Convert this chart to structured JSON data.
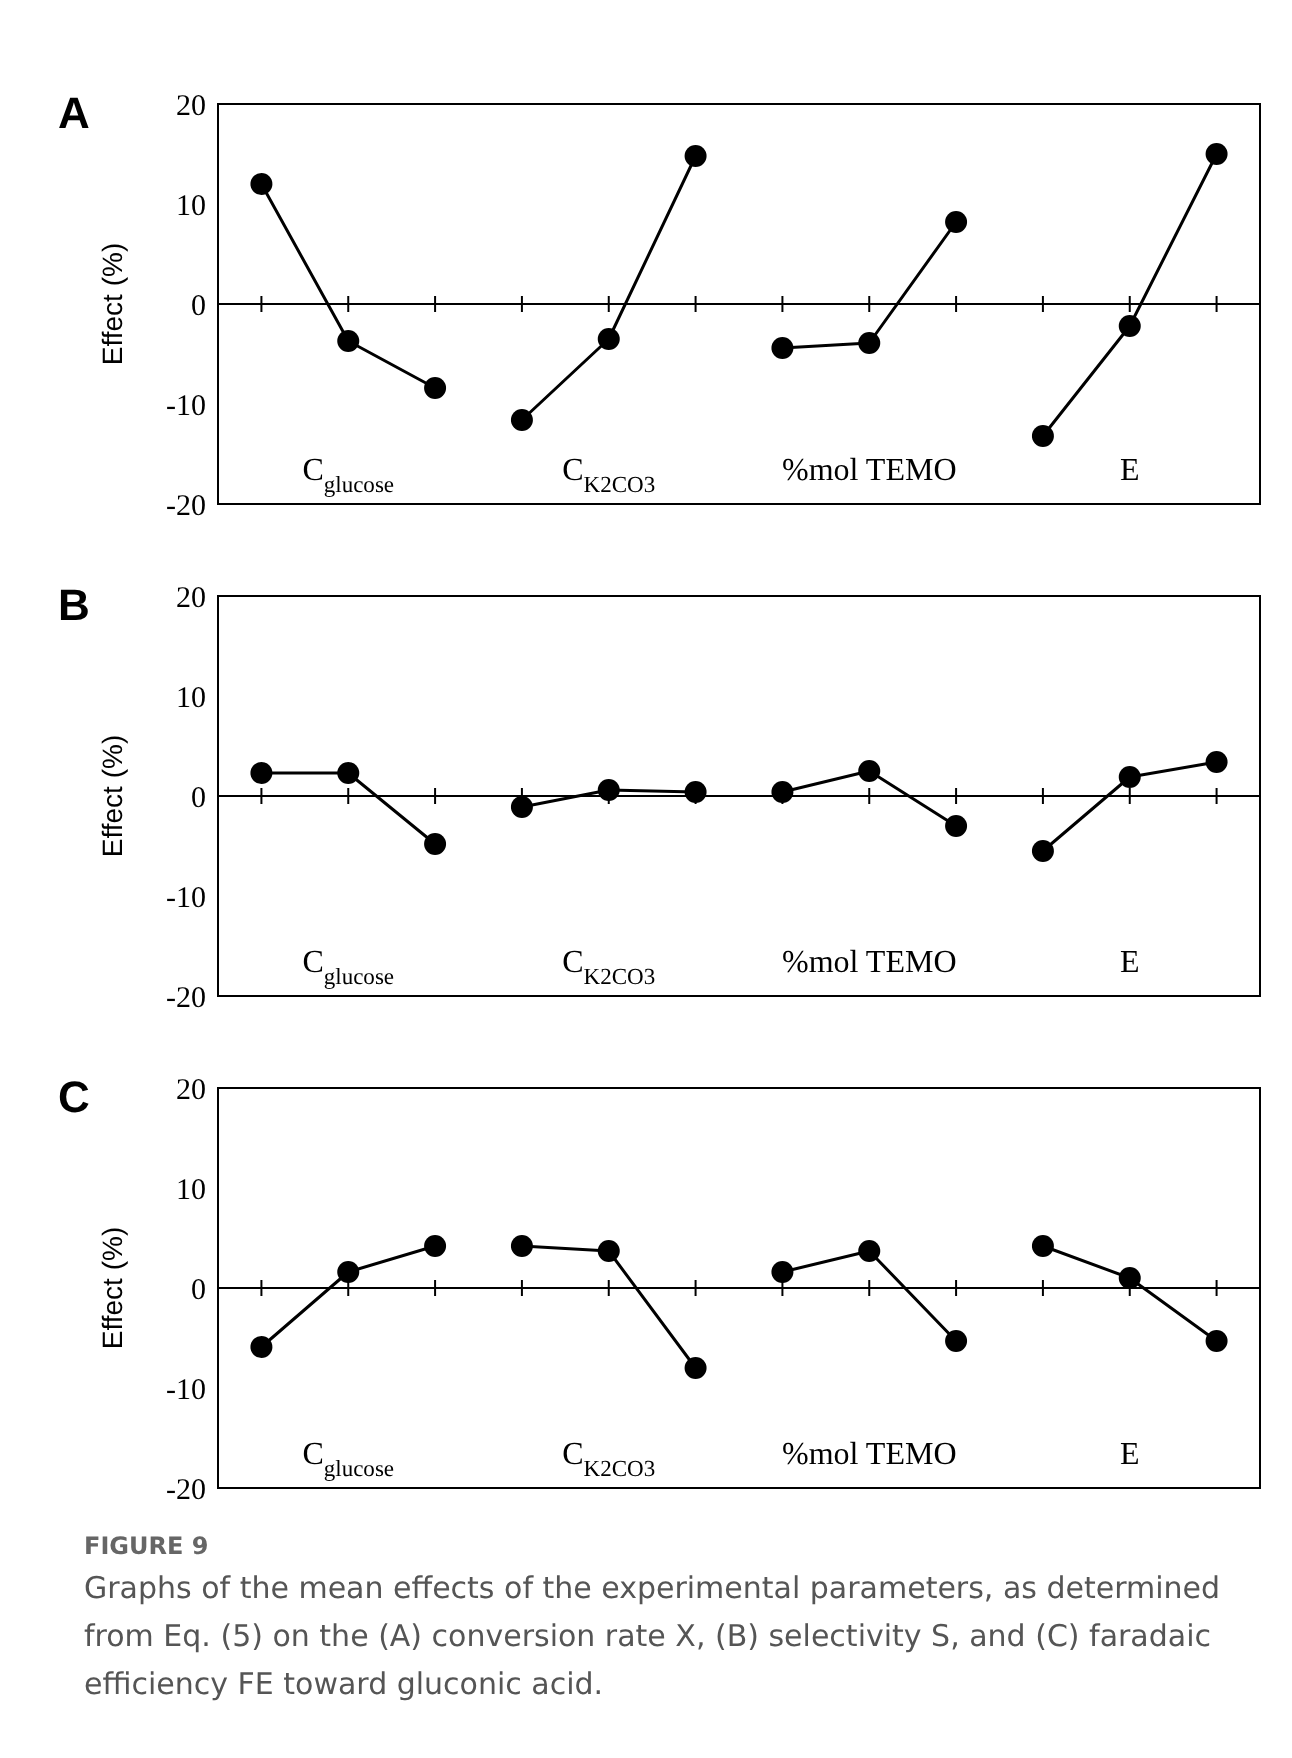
{
  "chart_data": [
    {
      "type": "line",
      "title": "A",
      "ylabel": "Effect (%)",
      "categories": [
        null,
        null,
        null,
        null,
        null,
        null,
        null,
        null,
        null,
        null,
        null,
        null
      ],
      "ylim": [
        -20,
        20
      ],
      "yticks": [
        -20,
        -10,
        0,
        10,
        20
      ],
      "tick_labels": "y",
      "marker": "circle",
      "annotations": [
        "C$_{glucose}$",
        "C$_{K2CO3}$",
        "%mol TEMO",
        "E"
      ],
      "series": [
        {
          "color": "#000000",
          "values": [
            12.0,
            -3.7,
            -8.4,
            null,
            null,
            null,
            null,
            null,
            null,
            null,
            null,
            null
          ]
        },
        {
          "color": "#000000",
          "values": [
            null,
            null,
            null,
            -11.6,
            -3.5,
            14.8,
            null,
            null,
            null,
            null,
            null,
            null
          ]
        },
        {
          "color": "#000000",
          "values": [
            null,
            null,
            null,
            null,
            null,
            null,
            -4.4,
            -3.9,
            8.2,
            null,
            null,
            null
          ]
        },
        {
          "color": "#000000",
          "values": [
            null,
            null,
            null,
            null,
            null,
            null,
            null,
            null,
            null,
            -13.2,
            -2.2,
            15.0
          ]
        }
      ]
    },
    {
      "type": "line",
      "title": "B",
      "ylabel": "Effect (%)",
      "categories": [
        null,
        null,
        null,
        null,
        null,
        null,
        null,
        null,
        null,
        null,
        null,
        null
      ],
      "ylim": [
        -20,
        20
      ],
      "yticks": [
        -20,
        -10,
        0,
        10,
        20
      ],
      "tick_labels": "y",
      "marker": "circle",
      "annotations": [
        "C$_{glucose}$",
        "C$_{K2CO3}$",
        "%mol TEMO",
        "E"
      ],
      "series": [
        {
          "color": "#000000",
          "values": [
            2.3,
            2.3,
            -4.8,
            null,
            null,
            null,
            null,
            null,
            null,
            null,
            null,
            null
          ]
        },
        {
          "color": "#000000",
          "values": [
            null,
            null,
            null,
            -1.1,
            0.6,
            0.4,
            null,
            null,
            null,
            null,
            null,
            null
          ]
        },
        {
          "color": "#000000",
          "values": [
            null,
            null,
            null,
            null,
            null,
            null,
            0.4,
            2.5,
            -3.0,
            null,
            null,
            null
          ]
        },
        {
          "color": "#000000",
          "values": [
            null,
            null,
            null,
            null,
            null,
            null,
            null,
            null,
            null,
            -5.5,
            1.9,
            3.4
          ]
        }
      ]
    },
    {
      "type": "line",
      "title": "C",
      "ylabel": "Effect (%)",
      "categories": [
        null,
        null,
        null,
        null,
        null,
        null,
        null,
        null,
        null,
        null,
        null,
        null
      ],
      "ylim": [
        -20,
        20
      ],
      "yticks": [
        -20,
        -10,
        0,
        10,
        20
      ],
      "tick_labels": "y",
      "marker": "circle",
      "annotations": [
        "C$_{glucose}$",
        "C$_{K2CO3}$",
        "%mol TEMO",
        "E",
        "FIGURE 9",
        "Graphs of the mean effects of the experimental parameters, as determined from Eq. (5) on the (A) conversion rate X, (B) selectivity S, and (C) faradaic efficiency FE toward gluconic acid."
      ],
      "series": [
        {
          "color": "#000000",
          "values": [
            -5.9,
            1.6,
            4.2,
            null,
            null,
            null,
            null,
            null,
            null,
            null,
            null,
            null
          ]
        },
        {
          "color": "#000000",
          "values": [
            null,
            null,
            null,
            4.2,
            3.7,
            -8.0,
            null,
            null,
            null,
            null,
            null,
            null
          ]
        },
        {
          "color": "#000000",
          "values": [
            null,
            null,
            null,
            null,
            null,
            null,
            1.6,
            3.7,
            -5.3,
            null,
            null,
            null
          ]
        },
        {
          "color": "#000000",
          "values": [
            null,
            null,
            null,
            null,
            null,
            null,
            null,
            null,
            null,
            4.2,
            1.0,
            -5.3
          ]
        }
      ]
    }
  ]
}
